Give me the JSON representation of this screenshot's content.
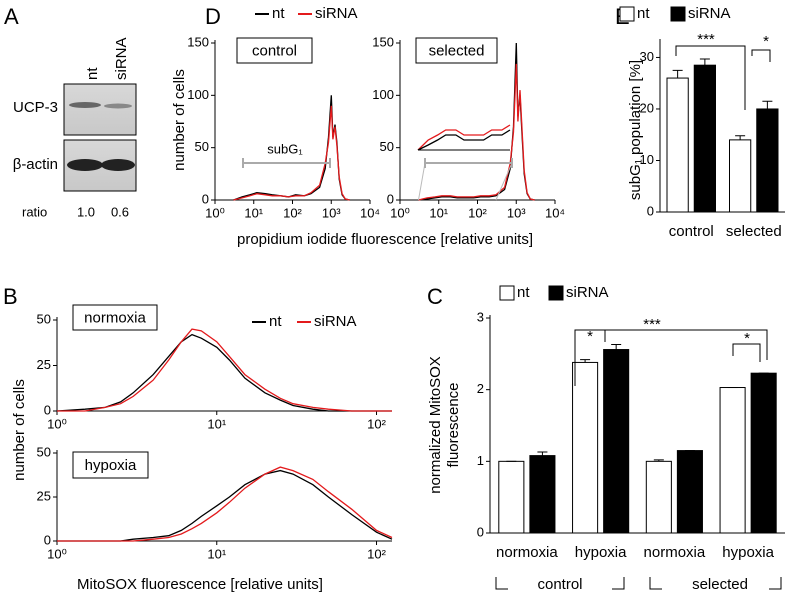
{
  "blot": {
    "panel": "A",
    "lanes": [
      "nt",
      "siRNA"
    ],
    "rows": [
      "UCP-3",
      "β-actin"
    ],
    "ratio_label": "ratio",
    "ratios": [
      "1.0",
      "0.6"
    ]
  },
  "chart_data": [
    {
      "type": "line",
      "panel": "D",
      "label": "control",
      "annotation": "subG₁",
      "log_x": true,
      "x_label": "propidium iodide fluorescence [relative units]",
      "y_label": "number of cells",
      "xlim": [
        1,
        10000
      ],
      "ylim": [
        0,
        150
      ],
      "xticks": [
        {
          "value": 1,
          "label": "10⁰"
        },
        {
          "value": 10,
          "label": "10¹"
        },
        {
          "value": 100,
          "label": "10²"
        },
        {
          "value": 1000,
          "label": "10³"
        },
        {
          "value": 10000,
          "label": "10⁴"
        }
      ],
      "yticks": [
        0,
        50,
        100,
        150
      ],
      "x": [
        3,
        5,
        8,
        12,
        20,
        30,
        50,
        80,
        120,
        200,
        300,
        500,
        700,
        850,
        1000,
        1100,
        1250,
        1400,
        1600,
        1900,
        2300,
        3000
      ],
      "series": [
        {
          "name": "nt",
          "color": "#000000",
          "values": [
            0,
            3,
            5,
            7,
            6,
            5,
            4,
            3,
            5,
            4,
            6,
            12,
            30,
            60,
            100,
            60,
            72,
            55,
            20,
            5,
            1,
            0
          ]
        },
        {
          "name": "siRNA",
          "color": "#e31a1c",
          "values": [
            0,
            2,
            4,
            6,
            5,
            4,
            4,
            3,
            4,
            4,
            7,
            14,
            35,
            55,
            90,
            58,
            70,
            52,
            22,
            6,
            1,
            0
          ]
        }
      ]
    },
    {
      "type": "line",
      "label": "selected",
      "log_x": true,
      "inset": true,
      "xlim": [
        1,
        10000
      ],
      "ylim": [
        0,
        150
      ],
      "xticks": [
        {
          "value": 1,
          "label": "10⁰"
        },
        {
          "value": 10,
          "label": "10¹"
        },
        {
          "value": 100,
          "label": "10²"
        },
        {
          "value": 1000,
          "label": "10³"
        },
        {
          "value": 10000,
          "label": "10⁴"
        }
      ],
      "yticks": [
        0,
        50,
        100,
        150
      ],
      "x": [
        3,
        5,
        8,
        12,
        20,
        30,
        50,
        80,
        120,
        200,
        300,
        500,
        700,
        850,
        1000,
        1100,
        1250,
        1400,
        1600,
        1900,
        2300,
        3000
      ],
      "series": [
        {
          "color": "#000000",
          "values": [
            0,
            1,
            2,
            3,
            3,
            2,
            2,
            2,
            3,
            3,
            4,
            10,
            30,
            70,
            150,
            80,
            100,
            65,
            25,
            6,
            1,
            0
          ]
        },
        {
          "color": "#e31a1c",
          "values": [
            0,
            2,
            3,
            4,
            4,
            3,
            3,
            3,
            4,
            4,
            5,
            12,
            35,
            65,
            130,
            75,
            105,
            70,
            28,
            7,
            1,
            0
          ]
        }
      ]
    },
    {
      "type": "bar",
      "panel": "E",
      "y_label": "subG₁ population [%]",
      "categories": [
        "control",
        "selected"
      ],
      "ylim": [
        0,
        33
      ],
      "yticks": [
        0,
        10,
        20,
        30
      ],
      "series": [
        {
          "name": "nt",
          "color": "#ffffff",
          "values": [
            26,
            14
          ],
          "errors": [
            1.5,
            0.8
          ]
        },
        {
          "name": "siRNA",
          "color": "#000000",
          "values": [
            28.5,
            20
          ],
          "errors": [
            1.2,
            1.5
          ]
        }
      ],
      "annotations": [
        "***",
        "*"
      ]
    },
    {
      "type": "line",
      "panel": "B",
      "label": "normoxia",
      "log_x": true,
      "y_label": "number of cells",
      "xlim": [
        1,
        125
      ],
      "ylim": [
        0,
        50
      ],
      "xticks": [
        {
          "value": 1,
          "label": "10⁰"
        },
        {
          "value": 10,
          "label": "10¹"
        },
        {
          "value": 100,
          "label": "10²"
        }
      ],
      "yticks": [
        0,
        25,
        50
      ],
      "x": [
        1,
        1.5,
        2,
        2.5,
        3,
        4,
        5,
        6,
        7,
        8,
        10,
        12,
        15,
        20,
        25,
        30,
        40,
        50,
        70,
        100,
        125
      ],
      "series": [
        {
          "name": "nt",
          "color": "#000000",
          "values": [
            0,
            1,
            2,
            5,
            10,
            20,
            30,
            38,
            42,
            40,
            35,
            28,
            18,
            10,
            6,
            3,
            1,
            0,
            0,
            0,
            0
          ]
        },
        {
          "name": "siRNA",
          "color": "#e31a1c",
          "values": [
            0,
            0,
            2,
            4,
            8,
            17,
            28,
            38,
            45,
            44,
            38,
            30,
            20,
            12,
            7,
            4,
            2,
            1,
            0,
            0,
            0
          ]
        }
      ]
    },
    {
      "type": "line",
      "label": "hypoxia",
      "log_x": true,
      "x_label": "MitoSOX fluorescence [relative units]",
      "xlim": [
        1,
        125
      ],
      "ylim": [
        0,
        50
      ],
      "xticks": [
        {
          "value": 1,
          "label": "10⁰"
        },
        {
          "value": 10,
          "label": "10¹"
        },
        {
          "value": 100,
          "label": "10²"
        }
      ],
      "yticks": [
        0,
        25,
        50
      ],
      "x": [
        1,
        1.5,
        2,
        2.5,
        3,
        4,
        5,
        6,
        7,
        8,
        10,
        12,
        15,
        20,
        25,
        30,
        40,
        50,
        70,
        100,
        125
      ],
      "series": [
        {
          "color": "#000000",
          "values": [
            0,
            0,
            0,
            0,
            1,
            2,
            3,
            6,
            10,
            14,
            20,
            25,
            32,
            38,
            40,
            38,
            32,
            25,
            15,
            5,
            1
          ]
        },
        {
          "color": "#e31a1c",
          "values": [
            0,
            0,
            0,
            0,
            0,
            1,
            2,
            4,
            7,
            10,
            16,
            22,
            30,
            38,
            42,
            40,
            35,
            28,
            18,
            6,
            2
          ]
        }
      ]
    },
    {
      "type": "bar",
      "panel": "C",
      "y_label": [
        "normalized MitoSOX",
        "fluorescence"
      ],
      "categories": [
        "normoxia",
        "hypoxia",
        "normoxia",
        "hypoxia"
      ],
      "groups": [
        "control",
        "selected"
      ],
      "ylim": [
        0,
        3
      ],
      "yticks": [
        0,
        1,
        2,
        3
      ],
      "series": [
        {
          "name": "nt",
          "color": "#ffffff",
          "values": [
            1.0,
            2.38,
            1.0,
            2.03
          ],
          "errors": [
            0,
            0.04,
            0.02,
            0
          ]
        },
        {
          "name": "siRNA",
          "color": "#000000",
          "values": [
            1.08,
            2.56,
            1.15,
            2.23
          ],
          "errors": [
            0.05,
            0.07,
            0,
            0
          ]
        }
      ],
      "annotations": [
        "*",
        "***",
        "*"
      ]
    }
  ]
}
